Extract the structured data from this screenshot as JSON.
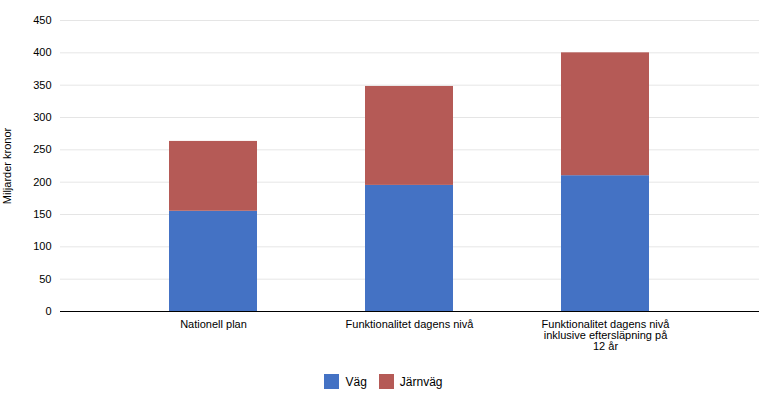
{
  "chart_data": {
    "type": "bar",
    "stacked": true,
    "categories": [
      "Nationell plan",
      "Funktionalitet dagens nivå",
      "Funktionalitet dagens nivå\ninklusive eftersläpning på\n12 år"
    ],
    "series": [
      {
        "name": "Väg",
        "color": "#4472C4",
        "values": [
          155,
          195,
          210
        ]
      },
      {
        "name": "Järnväg",
        "color": "#B55A56",
        "values": [
          108,
          153,
          190
        ]
      }
    ],
    "ylabel": "Miljarder kronor",
    "ylim": [
      0,
      450
    ],
    "yticks": [
      0,
      50,
      100,
      150,
      200,
      250,
      300,
      350,
      400,
      450
    ],
    "grid": true,
    "legend": "bottom"
  }
}
